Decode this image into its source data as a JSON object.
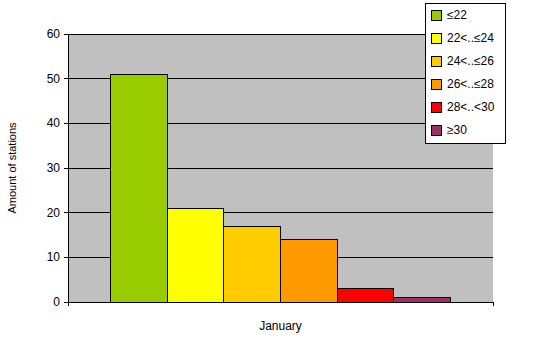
{
  "chart_data": {
    "type": "bar",
    "y_label": "Amount of stations",
    "categories": [
      "January"
    ],
    "series": [
      {
        "name": "≤22",
        "color": "#99cc00",
        "values": [
          51
        ]
      },
      {
        "name": "22<..≤24",
        "color": "#ffff00",
        "values": [
          21
        ]
      },
      {
        "name": "24<..≤26",
        "color": "#ffcc00",
        "values": [
          17
        ]
      },
      {
        "name": "26<..≤28",
        "color": "#ff9900",
        "values": [
          14
        ]
      },
      {
        "name": "28<..<30",
        "color": "#ff0000",
        "values": [
          3
        ]
      },
      {
        "name": "≥30",
        "color": "#993366",
        "values": [
          1
        ]
      }
    ],
    "ylim": [
      0,
      60
    ],
    "yticks": [
      0,
      10,
      20,
      30,
      40,
      50,
      60
    ],
    "grid": true,
    "legend": "upper right"
  }
}
